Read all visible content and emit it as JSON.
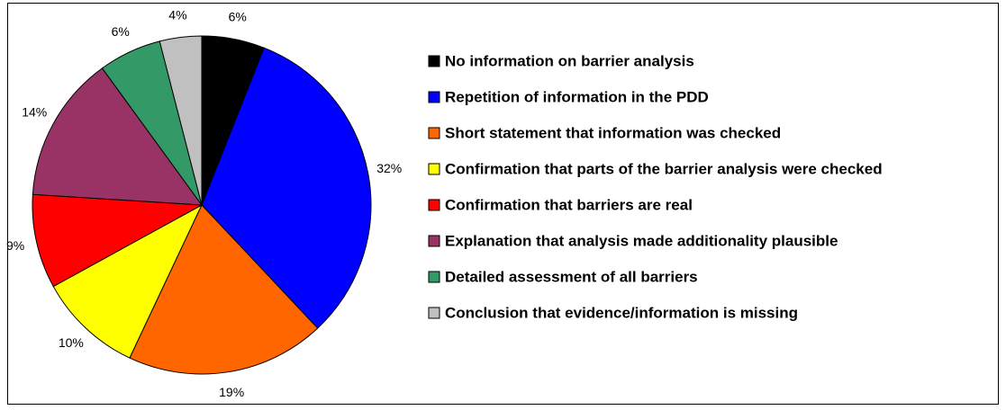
{
  "chart_data": {
    "type": "pie",
    "categories": [
      "No information on barrier analysis",
      "Repetition of information in the PDD",
      "Short statement that information was checked",
      "Confirmation that parts of the barrier analysis were checked",
      "Confirmation that barriers are real",
      "Explanation that analysis made additionality plausible",
      "Detailed assessment of all barriers",
      "Conclusion that evidence/information is missing"
    ],
    "values": [
      6,
      32,
      19,
      10,
      9,
      14,
      6,
      4
    ],
    "value_labels": [
      "6%",
      "32%",
      "19%",
      "10%",
      "9%",
      "14%",
      "6%",
      "4%"
    ],
    "colors": [
      "#000000",
      "#0000ff",
      "#ff6600",
      "#ffff00",
      "#ff0000",
      "#993366",
      "#339966",
      "#c0c0c0"
    ],
    "legend": "right"
  }
}
